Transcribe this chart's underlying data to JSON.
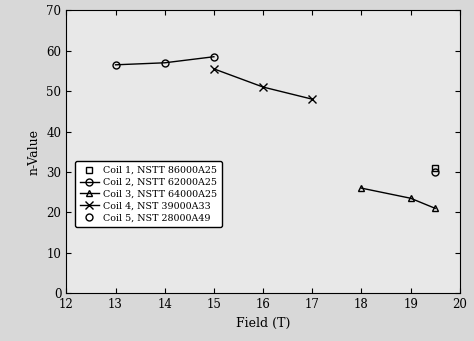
{
  "title": "",
  "xlabel": "Field (T)",
  "ylabel": "n-Value",
  "xlim": [
    12,
    20
  ],
  "ylim": [
    0,
    70
  ],
  "xticks": [
    12,
    13,
    14,
    15,
    16,
    17,
    18,
    19,
    20
  ],
  "yticks": [
    0,
    10,
    20,
    30,
    40,
    50,
    60,
    70
  ],
  "series": [
    {
      "label": "Coil 1, NSTT 86000A25",
      "x": [
        19.5
      ],
      "y": [
        31
      ],
      "marker": "s",
      "color": "#000000",
      "linestyle": "none",
      "markersize": 5,
      "fillstyle": "none"
    },
    {
      "label": "Coil 2, NSTT 62000A25",
      "x": [
        13,
        14,
        15
      ],
      "y": [
        56.5,
        57,
        58.5
      ],
      "marker": "o",
      "color": "#000000",
      "linestyle": "-",
      "markersize": 5,
      "fillstyle": "none"
    },
    {
      "label": "Coil 3, NSTT 64000A25",
      "x": [
        18,
        19,
        19.5
      ],
      "y": [
        26,
        23.5,
        21
      ],
      "marker": "^",
      "color": "#000000",
      "linestyle": "-",
      "markersize": 5,
      "fillstyle": "none"
    },
    {
      "label": "Coil 4, NST 39000A33",
      "x": [
        15,
        16,
        17
      ],
      "y": [
        55.5,
        51,
        48
      ],
      "marker": "x",
      "color": "#000000",
      "linestyle": "-",
      "markersize": 6,
      "fillstyle": "full"
    },
    {
      "label": "Coil 5, NST 28000A49",
      "x": [
        19.5
      ],
      "y": [
        30
      ],
      "marker": "o",
      "color": "#000000",
      "linestyle": "none",
      "markersize": 5,
      "fillstyle": "none"
    }
  ],
  "background_color": "#f0f0f0",
  "figsize": [
    4.74,
    3.41
  ],
  "dpi": 100
}
